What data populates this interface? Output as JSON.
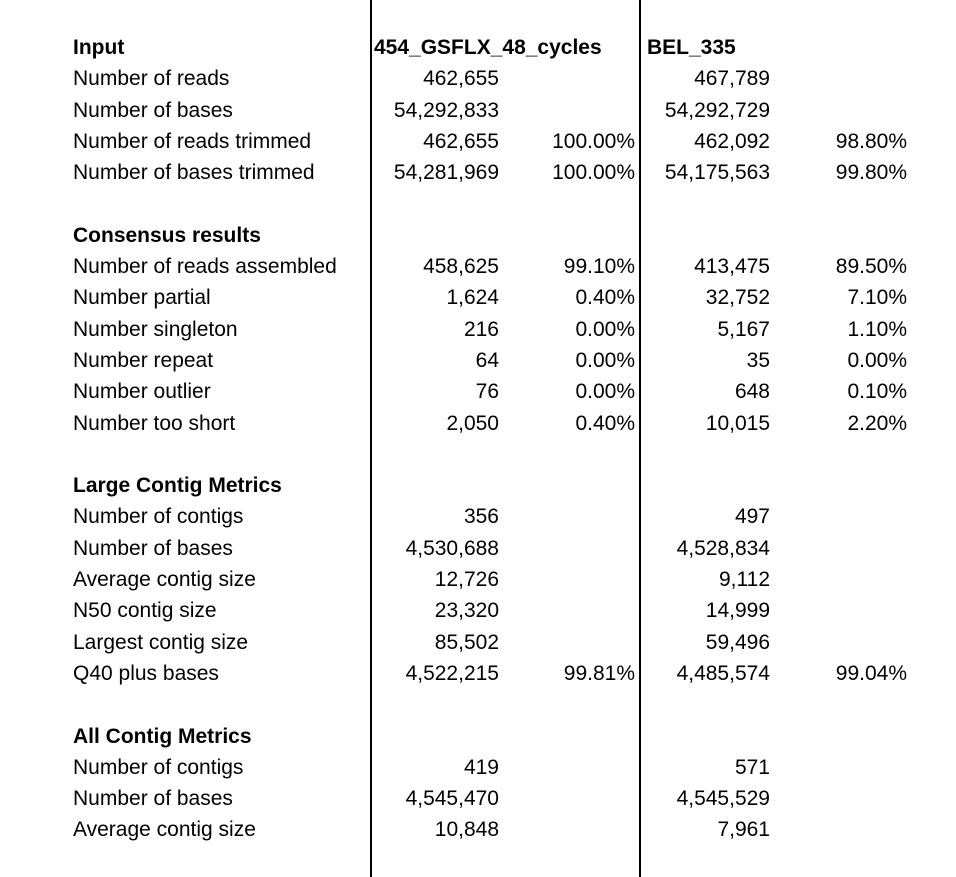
{
  "columns": {
    "col1": "454_GSFLX_48_cycles",
    "col2": "BEL_335"
  },
  "sections": [
    {
      "title": "Input",
      "rows": [
        {
          "label": "Number of reads",
          "v1": "462,655",
          "p1": "",
          "v2": "467,789",
          "p2": ""
        },
        {
          "label": "Number of bases",
          "v1": "54,292,833",
          "p1": "",
          "v2": "54,292,729",
          "p2": ""
        },
        {
          "label": "Number of reads trimmed",
          "v1": "462,655",
          "p1": "100.00%",
          "v2": "462,092",
          "p2": "98.80%"
        },
        {
          "label": "Number of bases trimmed",
          "v1": "54,281,969",
          "p1": "100.00%",
          "v2": "54,175,563",
          "p2": "99.80%"
        }
      ]
    },
    {
      "title": "Consensus results",
      "rows": [
        {
          "label": "Number of reads assembled",
          "v1": "458,625",
          "p1": "99.10%",
          "v2": "413,475",
          "p2": "89.50%"
        },
        {
          "label": "Number partial",
          "v1": "1,624",
          "p1": "0.40%",
          "v2": "32,752",
          "p2": "7.10%"
        },
        {
          "label": "Number singleton",
          "v1": "216",
          "p1": "0.00%",
          "v2": "5,167",
          "p2": "1.10%"
        },
        {
          "label": "Number repeat",
          "v1": "64",
          "p1": "0.00%",
          "v2": "35",
          "p2": "0.00%"
        },
        {
          "label": "Number outlier",
          "v1": "76",
          "p1": "0.00%",
          "v2": "648",
          "p2": "0.10%"
        },
        {
          "label": "Number too short",
          "v1": "2,050",
          "p1": "0.40%",
          "v2": "10,015",
          "p2": "2.20%"
        }
      ]
    },
    {
      "title": "Large Contig Metrics",
      "rows": [
        {
          "label": "Number of contigs",
          "v1": "356",
          "p1": "",
          "v2": "497",
          "p2": ""
        },
        {
          "label": "Number of bases",
          "v1": "4,530,688",
          "p1": "",
          "v2": "4,528,834",
          "p2": ""
        },
        {
          "label": "Average contig size",
          "v1": "12,726",
          "p1": "",
          "v2": "9,112",
          "p2": ""
        },
        {
          "label": "N50 contig size",
          "v1": "23,320",
          "p1": "",
          "v2": "14,999",
          "p2": ""
        },
        {
          "label": "Largest contig size",
          "v1": "85,502",
          "p1": "",
          "v2": "59,496",
          "p2": ""
        },
        {
          "label": "Q40 plus bases",
          "v1": "4,522,215",
          "p1": "99.81%",
          "v2": "4,485,574",
          "p2": "99.04%"
        }
      ]
    },
    {
      "title": "All Contig Metrics",
      "rows": [
        {
          "label": "Number of contigs",
          "v1": "419",
          "p1": "",
          "v2": "571",
          "p2": ""
        },
        {
          "label": "Number of bases",
          "v1": "4,545,470",
          "p1": "",
          "v2": "4,545,529",
          "p2": ""
        },
        {
          "label": "Average contig size",
          "v1": "10,848",
          "p1": "",
          "v2": "7,961",
          "p2": ""
        }
      ]
    }
  ]
}
